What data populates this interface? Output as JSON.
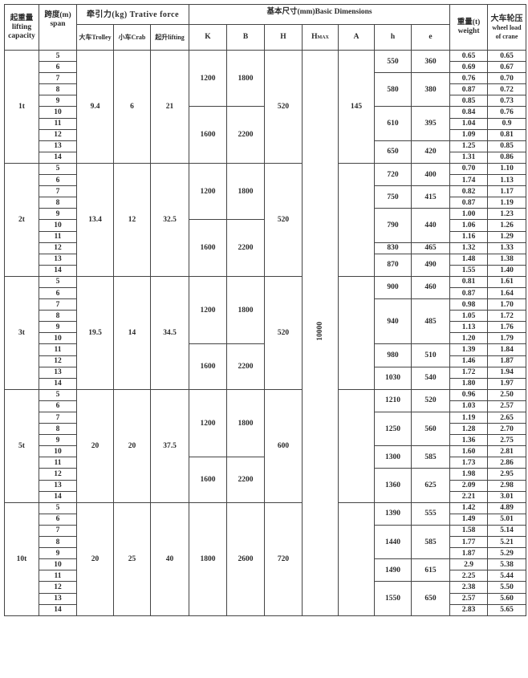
{
  "header": {
    "capacity": {
      "zh": "起重量",
      "en1": "lifting",
      "en2": "capacity"
    },
    "span": {
      "zh": "跨度(m)",
      "en": "span"
    },
    "trative_force": "牵引力(kg) Trative force",
    "trolley": "大车Trolley",
    "crab": "小车Crab",
    "lifting": "起升lifting",
    "basic_dimensions": "基本尺寸(mm)Basic Dimensions",
    "K": "K",
    "B": "B",
    "H": "H",
    "Hmax": "H",
    "Hmax_sub": "MAX",
    "A": "A",
    "h": "h",
    "e": "e",
    "weight": {
      "zh": "重量(t)",
      "en": "weight"
    },
    "wheel_load": {
      "zh": "大车轮压",
      "en1": "wheel load",
      "en2": "of crane"
    }
  },
  "Hmax_value": "10000",
  "groups": [
    {
      "capacity": "1t",
      "trolley": "9.4",
      "crab": "6",
      "lifting": "21",
      "H": "520",
      "A": "145",
      "spans": [
        "5",
        "6",
        "7",
        "8",
        "9",
        "10",
        "11",
        "12",
        "13",
        "14"
      ],
      "kb": [
        {
          "K": "1200",
          "B": "1800",
          "rows": 5
        },
        {
          "K": "1600",
          "B": "2200",
          "rows": 5
        }
      ],
      "he": [
        {
          "h": "550",
          "e": "360",
          "rows": 2
        },
        {
          "h": "580",
          "e": "380",
          "rows": 3
        },
        {
          "h": "610",
          "e": "395",
          "rows": 3
        },
        {
          "h": "650",
          "e": "420",
          "rows": 2
        }
      ],
      "weight": [
        "0.65",
        "0.69",
        "0.76",
        "0.87",
        "0.85",
        "0.84",
        "1.04",
        "1.09",
        "1.25",
        "1.31"
      ],
      "wheel_load": [
        "0.65",
        "0.67",
        "0.70",
        "0.72",
        "0.73",
        "0.76",
        "0.9",
        "0.81",
        "0.85",
        "0.86"
      ]
    },
    {
      "capacity": "2t",
      "trolley": "13.4",
      "crab": "12",
      "lifting": "32.5",
      "H": "520",
      "A": "",
      "spans": [
        "5",
        "6",
        "7",
        "8",
        "9",
        "10",
        "11",
        "12",
        "13",
        "14"
      ],
      "kb": [
        {
          "K": "1200",
          "B": "1800",
          "rows": 5
        },
        {
          "K": "1600",
          "B": "2200",
          "rows": 5
        }
      ],
      "he": [
        {
          "h": "720",
          "e": "400",
          "rows": 2
        },
        {
          "h": "750",
          "e": "415",
          "rows": 2
        },
        {
          "h": "790",
          "e": "440",
          "rows": 3
        },
        {
          "h": "830",
          "e": "465",
          "rows": 1
        },
        {
          "h": "870",
          "e": "490",
          "rows": 2
        }
      ],
      "weight": [
        "0.70",
        "1.74",
        "0.82",
        "0.87",
        "1.00",
        "1.06",
        "1.16",
        "1.32",
        "1.48",
        "1.55"
      ],
      "wheel_load": [
        "1.10",
        "1.13",
        "1.17",
        "1.19",
        "1.23",
        "1.26",
        "1.29",
        "1.33",
        "1.38",
        "1.40"
      ]
    },
    {
      "capacity": "3t",
      "trolley": "19.5",
      "crab": "14",
      "lifting": "34.5",
      "H": "520",
      "A": "",
      "spans": [
        "5",
        "6",
        "7",
        "8",
        "9",
        "10",
        "11",
        "12",
        "13",
        "14"
      ],
      "kb": [
        {
          "K": "1200",
          "B": "1800",
          "rows": 6
        },
        {
          "K": "1600",
          "B": "2200",
          "rows": 4
        }
      ],
      "he": [
        {
          "h": "900",
          "e": "460",
          "rows": 2
        },
        {
          "h": "940",
          "e": "485",
          "rows": 4
        },
        {
          "h": "980",
          "e": "510",
          "rows": 2
        },
        {
          "h": "1030",
          "e": "540",
          "rows": 2
        }
      ],
      "weight": [
        "0.81",
        "0.87",
        "0.98",
        "1.05",
        "1.13",
        "1.20",
        "1.39",
        "1.46",
        "1.72",
        "1.80"
      ],
      "wheel_load": [
        "1.61",
        "1.64",
        "1.70",
        "1.72",
        "1.76",
        "1.79",
        "1.84",
        "1.87",
        "1.94",
        "1.97"
      ]
    },
    {
      "capacity": "5t",
      "trolley": "20",
      "crab": "20",
      "lifting": "37.5",
      "H": "600",
      "A": "",
      "spans": [
        "5",
        "6",
        "7",
        "8",
        "9",
        "10",
        "11",
        "12",
        "13",
        "14"
      ],
      "kb": [
        {
          "K": "1200",
          "B": "1800",
          "rows": 6
        },
        {
          "K": "1600",
          "B": "2200",
          "rows": 4
        }
      ],
      "he": [
        {
          "h": "1210",
          "e": "520",
          "rows": 2
        },
        {
          "h": "1250",
          "e": "560",
          "rows": 3
        },
        {
          "h": "1300",
          "e": "585",
          "rows": 2
        },
        {
          "h": "1360",
          "e": "625",
          "rows": 3
        }
      ],
      "weight": [
        "0.96",
        "1.03",
        "1.19",
        "1.28",
        "1.36",
        "1.60",
        "1.73",
        "1.98",
        "2.09",
        "2.21"
      ],
      "wheel_load": [
        "2.50",
        "2.57",
        "2.65",
        "2.70",
        "2.75",
        "2.81",
        "2.86",
        "2.95",
        "2.98",
        "3.01"
      ]
    },
    {
      "capacity": "10t",
      "trolley": "20",
      "crab": "25",
      "lifting": "40",
      "H": "720",
      "A": "",
      "spans": [
        "5",
        "6",
        "7",
        "8",
        "9",
        "10",
        "11",
        "12",
        "13",
        "14"
      ],
      "kb": [
        {
          "K": "1800",
          "B": "2600",
          "rows": 10
        }
      ],
      "he": [
        {
          "h": "1390",
          "e": "555",
          "rows": 2
        },
        {
          "h": "1440",
          "e": "585",
          "rows": 3
        },
        {
          "h": "1490",
          "e": "615",
          "rows": 2
        },
        {
          "h": "1550",
          "e": "650",
          "rows": 3
        }
      ],
      "weight": [
        "1.42",
        "1.49",
        "1.58",
        "1.77",
        "1.87",
        "2.9",
        "2.25",
        "2.38",
        "2.57",
        "2.83"
      ],
      "wheel_load": [
        "4.89",
        "5.01",
        "5.14",
        "5.21",
        "5.29",
        "5.38",
        "5.44",
        "5.50",
        "5.60",
        "5.65"
      ]
    }
  ]
}
